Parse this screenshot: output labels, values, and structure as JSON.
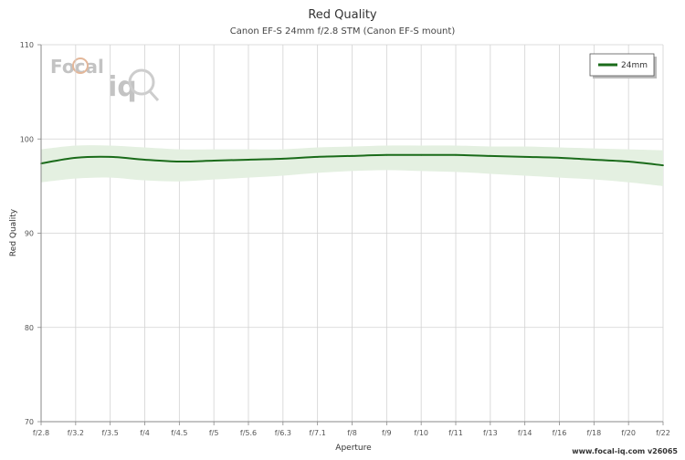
{
  "chart_data": {
    "type": "line",
    "title": "Red Quality",
    "subtitle": "Canon EF-S 24mm f/2.8 STM (Canon EF-S mount)",
    "xlabel": "Aperture",
    "ylabel": "Red Quality",
    "categories": [
      "f/2.8",
      "f/3.2",
      "f/3.5",
      "f/4",
      "f/4.5",
      "f/5",
      "f/5.6",
      "f/6.3",
      "f/7.1",
      "f/8",
      "f/9",
      "f/10",
      "f/11",
      "f/13",
      "f/14",
      "f/16",
      "f/18",
      "f/20",
      "f/22"
    ],
    "ylim": [
      70,
      110
    ],
    "yticks": [
      70,
      80,
      90,
      100,
      110
    ],
    "grid": true,
    "legend_position": "top-right",
    "series": [
      {
        "name": "24mm",
        "color": "#1a6b1a",
        "values": [
          97.4,
          98.0,
          98.1,
          97.8,
          97.6,
          97.7,
          97.8,
          97.9,
          98.1,
          98.2,
          98.3,
          98.3,
          98.3,
          98.2,
          98.1,
          98.0,
          97.8,
          97.6,
          97.2
        ],
        "band_upper": [
          98.9,
          99.3,
          99.3,
          99.1,
          98.9,
          98.9,
          98.9,
          98.9,
          99.1,
          99.2,
          99.3,
          99.3,
          99.3,
          99.2,
          99.2,
          99.1,
          99.0,
          98.9,
          98.8
        ],
        "band_lower": [
          95.4,
          95.8,
          95.9,
          95.6,
          95.5,
          95.7,
          95.9,
          96.1,
          96.4,
          96.6,
          96.7,
          96.6,
          96.5,
          96.3,
          96.1,
          95.9,
          95.7,
          95.4,
          95.0
        ],
        "band_color": "#e4f0e1"
      }
    ]
  },
  "watermark": {
    "logo_text_1": "Focal",
    "logo_text_2": "iq"
  },
  "footer": {
    "text": "www.focal-iq.com  v26065"
  }
}
